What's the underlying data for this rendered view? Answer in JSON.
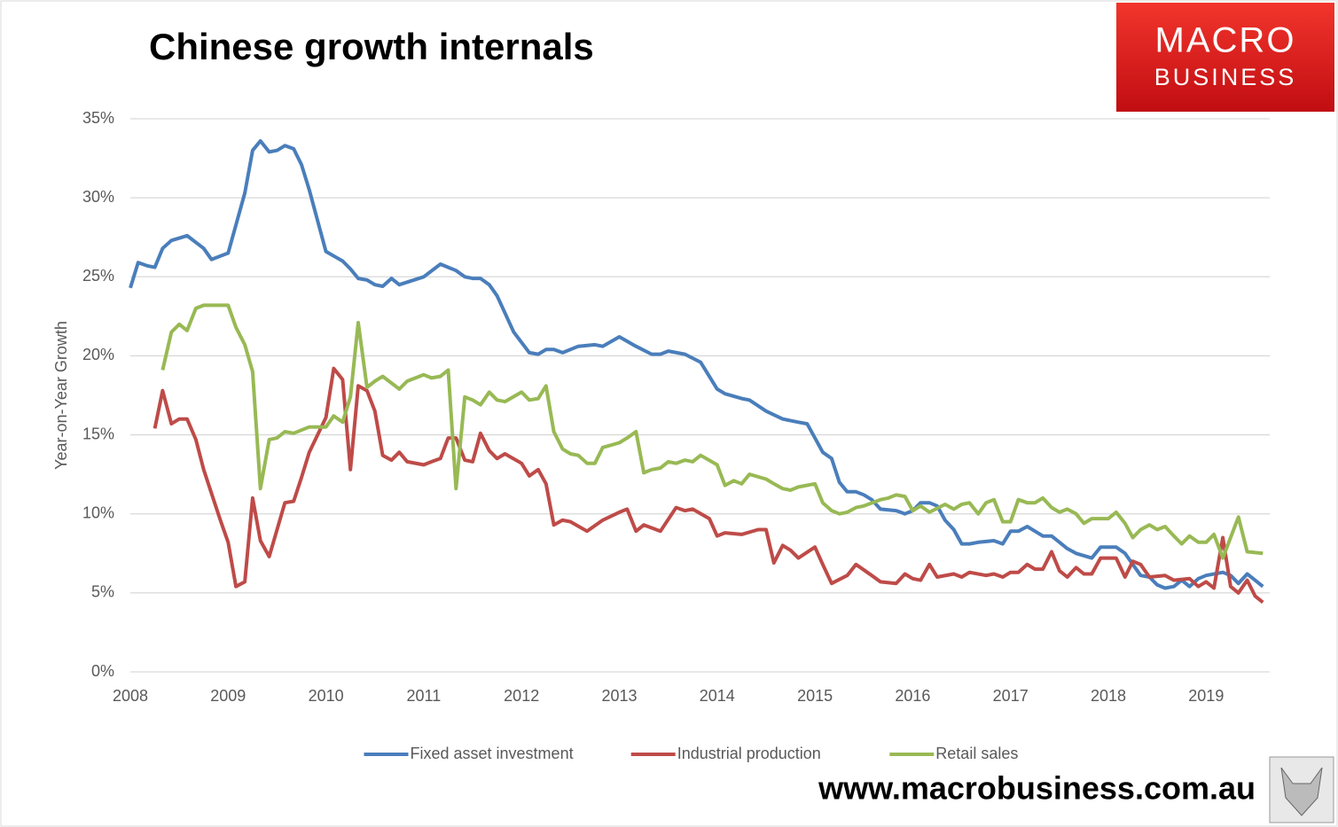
{
  "chart_data": {
    "type": "line",
    "title": "Chinese growth internals",
    "ylabel": "Year-on-Year Growth",
    "annotations": [
      "MACRO",
      "BUSINESS",
      "www.macrobusiness.com.au"
    ],
    "xlim": [
      2008,
      2019.65
    ],
    "xticks": [
      2008,
      2009,
      2010,
      2011,
      2012,
      2013,
      2014,
      2015,
      2016,
      2017,
      2018,
      2019
    ],
    "ylim": [
      0,
      35
    ],
    "yticks": [
      {
        "value": 0,
        "label": "0%"
      },
      {
        "value": 5,
        "label": "5%"
      },
      {
        "value": 10,
        "label": "10%"
      },
      {
        "value": 15,
        "label": "15%"
      },
      {
        "value": 20,
        "label": "20%"
      },
      {
        "value": 25,
        "label": "25%"
      },
      {
        "value": 30,
        "label": "30%"
      },
      {
        "value": 35,
        "label": "35%"
      }
    ],
    "grid": true,
    "legend": "bottom",
    "series": [
      {
        "name": "Fixed asset investment",
        "color": "#4a7ebb",
        "x": [
          2008.0,
          2008.08,
          2008.17,
          2008.25,
          2008.33,
          2008.42,
          2008.58,
          2008.75,
          2008.83,
          2009.0,
          2009.17,
          2009.25,
          2009.33,
          2009.42,
          2009.5,
          2009.58,
          2009.67,
          2009.75,
          2009.83,
          2010.0,
          2010.17,
          2010.25,
          2010.33,
          2010.42,
          2010.5,
          2010.58,
          2010.67,
          2010.75,
          2011.0,
          2011.17,
          2011.33,
          2011.42,
          2011.5,
          2011.58,
          2011.67,
          2011.75,
          2011.92,
          2012.08,
          2012.17,
          2012.25,
          2012.33,
          2012.42,
          2012.58,
          2012.75,
          2012.83,
          2013.0,
          2013.17,
          2013.33,
          2013.42,
          2013.5,
          2013.67,
          2013.83,
          2014.0,
          2014.08,
          2014.25,
          2014.33,
          2014.5,
          2014.67,
          2014.83,
          2014.92,
          2015.08,
          2015.17,
          2015.25,
          2015.33,
          2015.42,
          2015.5,
          2015.58,
          2015.67,
          2015.83,
          2015.92,
          2016.0,
          2016.08,
          2016.17,
          2016.25,
          2016.33,
          2016.42,
          2016.5,
          2016.58,
          2016.67,
          2016.83,
          2016.92,
          2017.0,
          2017.08,
          2017.17,
          2017.25,
          2017.33,
          2017.42,
          2017.5,
          2017.58,
          2017.67,
          2017.83,
          2017.92,
          2018.08,
          2018.17,
          2018.33,
          2018.42,
          2018.5,
          2018.58,
          2018.67,
          2018.75,
          2018.83,
          2018.92,
          2019.0,
          2019.17,
          2019.25,
          2019.33,
          2019.42,
          2019.5,
          2019.58
        ],
        "values": [
          24.3,
          25.9,
          25.7,
          25.6,
          26.8,
          27.3,
          27.6,
          26.8,
          26.1,
          26.5,
          30.3,
          33.0,
          33.6,
          32.9,
          33.0,
          33.3,
          33.1,
          32.1,
          30.5,
          26.6,
          26.0,
          25.5,
          24.9,
          24.8,
          24.5,
          24.4,
          24.9,
          24.5,
          25.0,
          25.8,
          25.4,
          25.0,
          24.9,
          24.9,
          24.5,
          23.8,
          21.5,
          20.2,
          20.1,
          20.4,
          20.4,
          20.2,
          20.6,
          20.7,
          20.6,
          21.2,
          20.6,
          20.1,
          20.1,
          20.3,
          20.1,
          19.6,
          17.9,
          17.6,
          17.3,
          17.2,
          16.5,
          16.0,
          15.8,
          15.7,
          13.9,
          13.5,
          12.0,
          11.4,
          11.4,
          11.2,
          10.9,
          10.3,
          10.2,
          10.0,
          10.2,
          10.7,
          10.7,
          10.5,
          9.6,
          9.0,
          8.1,
          8.1,
          8.2,
          8.3,
          8.1,
          8.9,
          8.9,
          9.2,
          8.9,
          8.6,
          8.6,
          8.2,
          7.8,
          7.5,
          7.2,
          7.9,
          7.9,
          7.5,
          6.1,
          6.0,
          5.5,
          5.3,
          5.4,
          5.8,
          5.4,
          5.9,
          6.1,
          6.3,
          6.1,
          5.6,
          6.2,
          5.8,
          5.4
        ]
      },
      {
        "name": "Industrial production",
        "color": "#be4b48",
        "x": [
          2008.25,
          2008.33,
          2008.42,
          2008.5,
          2008.58,
          2008.67,
          2008.75,
          2008.83,
          2008.92,
          2009.0,
          2009.08,
          2009.17,
          2009.25,
          2009.33,
          2009.42,
          2009.58,
          2009.67,
          2009.75,
          2009.83,
          2010.0,
          2010.08,
          2010.17,
          2010.25,
          2010.33,
          2010.42,
          2010.5,
          2010.58,
          2010.67,
          2010.75,
          2010.83,
          2011.0,
          2011.08,
          2011.17,
          2011.25,
          2011.33,
          2011.42,
          2011.5,
          2011.58,
          2011.67,
          2011.75,
          2011.83,
          2012.0,
          2012.08,
          2012.17,
          2012.25,
          2012.33,
          2012.42,
          2012.5,
          2012.67,
          2012.83,
          2013.0,
          2013.08,
          2013.17,
          2013.25,
          2013.42,
          2013.58,
          2013.67,
          2013.75,
          2013.92,
          2014.0,
          2014.08,
          2014.25,
          2014.42,
          2014.5,
          2014.58,
          2014.67,
          2014.75,
          2014.83,
          2015.0,
          2015.08,
          2015.17,
          2015.33,
          2015.42,
          2015.58,
          2015.67,
          2015.83,
          2015.92,
          2016.0,
          2016.08,
          2016.17,
          2016.25,
          2016.42,
          2016.5,
          2016.58,
          2016.75,
          2016.83,
          2016.92,
          2017.0,
          2017.08,
          2017.17,
          2017.25,
          2017.33,
          2017.42,
          2017.5,
          2017.58,
          2017.67,
          2017.75,
          2017.83,
          2017.92,
          2018.0,
          2018.08,
          2018.17,
          2018.25,
          2018.33,
          2018.42,
          2018.58,
          2018.67,
          2018.83,
          2018.92,
          2019.0,
          2019.08,
          2019.17,
          2019.25,
          2019.33,
          2019.42,
          2019.5,
          2019.58
        ],
        "values": [
          15.4,
          17.8,
          15.7,
          16.0,
          16.0,
          14.7,
          12.8,
          11.3,
          9.6,
          8.2,
          5.4,
          5.7,
          11.0,
          8.3,
          7.3,
          10.7,
          10.8,
          12.3,
          13.9,
          16.1,
          19.2,
          18.5,
          12.8,
          18.1,
          17.8,
          16.5,
          13.7,
          13.4,
          13.9,
          13.3,
          13.1,
          13.3,
          13.5,
          14.8,
          14.8,
          13.4,
          13.3,
          15.1,
          14.0,
          13.5,
          13.8,
          13.2,
          12.4,
          12.8,
          11.9,
          9.3,
          9.6,
          9.5,
          8.9,
          9.6,
          10.1,
          10.3,
          8.9,
          9.3,
          8.9,
          10.4,
          10.2,
          10.3,
          9.7,
          8.6,
          8.8,
          8.7,
          9.0,
          9.0,
          6.9,
          8.0,
          7.7,
          7.2,
          7.9,
          6.8,
          5.6,
          6.1,
          6.8,
          6.1,
          5.7,
          5.6,
          6.2,
          5.9,
          5.8,
          6.8,
          6.0,
          6.2,
          6.0,
          6.3,
          6.1,
          6.2,
          6.0,
          6.3,
          6.3,
          6.8,
          6.5,
          6.5,
          7.6,
          6.4,
          6.0,
          6.6,
          6.2,
          6.2,
          7.2,
          7.2,
          7.2,
          6.0,
          7.0,
          6.8,
          6.0,
          6.1,
          5.8,
          5.9,
          5.4,
          5.7,
          5.3,
          8.5,
          5.4,
          5.0,
          5.8,
          4.8,
          4.4
        ]
      },
      {
        "name": "Retail sales",
        "color": "#98b954",
        "x": [
          2008.33,
          2008.42,
          2008.5,
          2008.58,
          2008.67,
          2008.75,
          2008.83,
          2009.0,
          2009.08,
          2009.17,
          2009.25,
          2009.33,
          2009.42,
          2009.5,
          2009.58,
          2009.67,
          2009.75,
          2009.83,
          2010.0,
          2010.08,
          2010.17,
          2010.25,
          2010.33,
          2010.42,
          2010.5,
          2010.58,
          2010.75,
          2010.83,
          2011.0,
          2011.08,
          2011.17,
          2011.25,
          2011.33,
          2011.42,
          2011.5,
          2011.58,
          2011.67,
          2011.75,
          2011.83,
          2012.0,
          2012.08,
          2012.17,
          2012.25,
          2012.33,
          2012.42,
          2012.5,
          2012.58,
          2012.67,
          2012.75,
          2012.83,
          2013.0,
          2013.08,
          2013.17,
          2013.25,
          2013.33,
          2013.42,
          2013.5,
          2013.58,
          2013.67,
          2013.75,
          2013.83,
          2014.0,
          2014.08,
          2014.17,
          2014.25,
          2014.33,
          2014.5,
          2014.58,
          2014.67,
          2014.75,
          2014.83,
          2015.0,
          2015.08,
          2015.17,
          2015.25,
          2015.33,
          2015.42,
          2015.5,
          2015.67,
          2015.75,
          2015.83,
          2015.92,
          2016.0,
          2016.08,
          2016.17,
          2016.33,
          2016.42,
          2016.5,
          2016.58,
          2016.67,
          2016.75,
          2016.83,
          2016.92,
          2017.0,
          2017.08,
          2017.17,
          2017.25,
          2017.33,
          2017.42,
          2017.5,
          2017.58,
          2017.67,
          2017.75,
          2017.83,
          2018.0,
          2018.08,
          2018.17,
          2018.25,
          2018.33,
          2018.42,
          2018.5,
          2018.58,
          2018.67,
          2018.75,
          2018.83,
          2018.92,
          2019.0,
          2019.08,
          2019.17,
          2019.33,
          2019.42,
          2019.58
        ],
        "values": [
          19.1,
          21.5,
          22.0,
          21.6,
          23.0,
          23.2,
          23.2,
          23.2,
          21.8,
          20.7,
          19.0,
          11.6,
          14.7,
          14.8,
          15.2,
          15.1,
          15.3,
          15.5,
          15.5,
          16.2,
          15.8,
          17.4,
          22.1,
          18.0,
          18.4,
          18.7,
          17.9,
          18.4,
          18.8,
          18.6,
          18.7,
          19.1,
          11.6,
          17.4,
          17.2,
          16.9,
          17.7,
          17.2,
          17.1,
          17.7,
          17.2,
          17.3,
          18.1,
          15.2,
          14.1,
          13.8,
          13.7,
          13.2,
          13.2,
          14.2,
          14.5,
          14.8,
          15.2,
          12.6,
          12.8,
          12.9,
          13.3,
          13.2,
          13.4,
          13.3,
          13.7,
          13.1,
          11.8,
          12.1,
          11.9,
          12.5,
          12.2,
          11.9,
          11.6,
          11.5,
          11.7,
          11.9,
          10.7,
          10.2,
          10.0,
          10.1,
          10.4,
          10.5,
          10.9,
          11.0,
          11.2,
          11.1,
          10.2,
          10.5,
          10.1,
          10.6,
          10.3,
          10.6,
          10.7,
          10.0,
          10.7,
          10.9,
          9.5,
          9.5,
          10.9,
          10.7,
          10.7,
          11.0,
          10.4,
          10.1,
          10.3,
          10.0,
          9.4,
          9.7,
          9.7,
          10.1,
          9.4,
          8.5,
          9.0,
          9.3,
          9.0,
          9.2,
          8.6,
          8.1,
          8.6,
          8.2,
          8.2,
          8.7,
          7.2,
          9.8,
          7.6,
          7.5
        ]
      }
    ]
  }
}
